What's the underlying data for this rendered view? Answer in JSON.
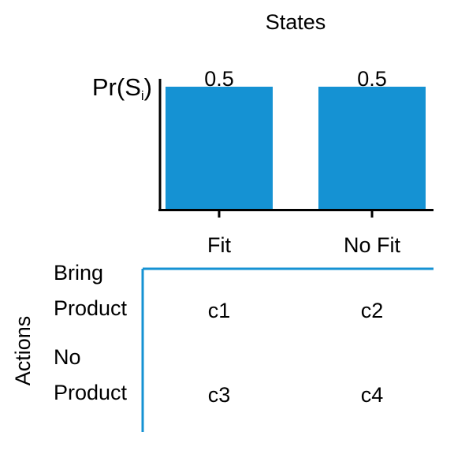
{
  "chart_data": {
    "type": "bar",
    "title": "States",
    "ylabel": {
      "base": "Pr",
      "var": "S",
      "sub": "i"
    },
    "categories": [
      "Fit",
      "No Fit"
    ],
    "values": [
      0.5,
      0.5
    ],
    "data_labels": [
      "0.5",
      "0.5"
    ],
    "ylim": [
      0,
      0.5
    ],
    "bar_color": "#1592d3",
    "grid": false,
    "table": {
      "axis_label": "Actions",
      "color": "#1592d3",
      "rows": [
        {
          "label_top": "Bring",
          "label_bottom": "Product",
          "cells": [
            "c1",
            "c2"
          ]
        },
        {
          "label_top": "No",
          "label_bottom": "Product",
          "cells": [
            "c3",
            "c4"
          ]
        }
      ]
    }
  }
}
